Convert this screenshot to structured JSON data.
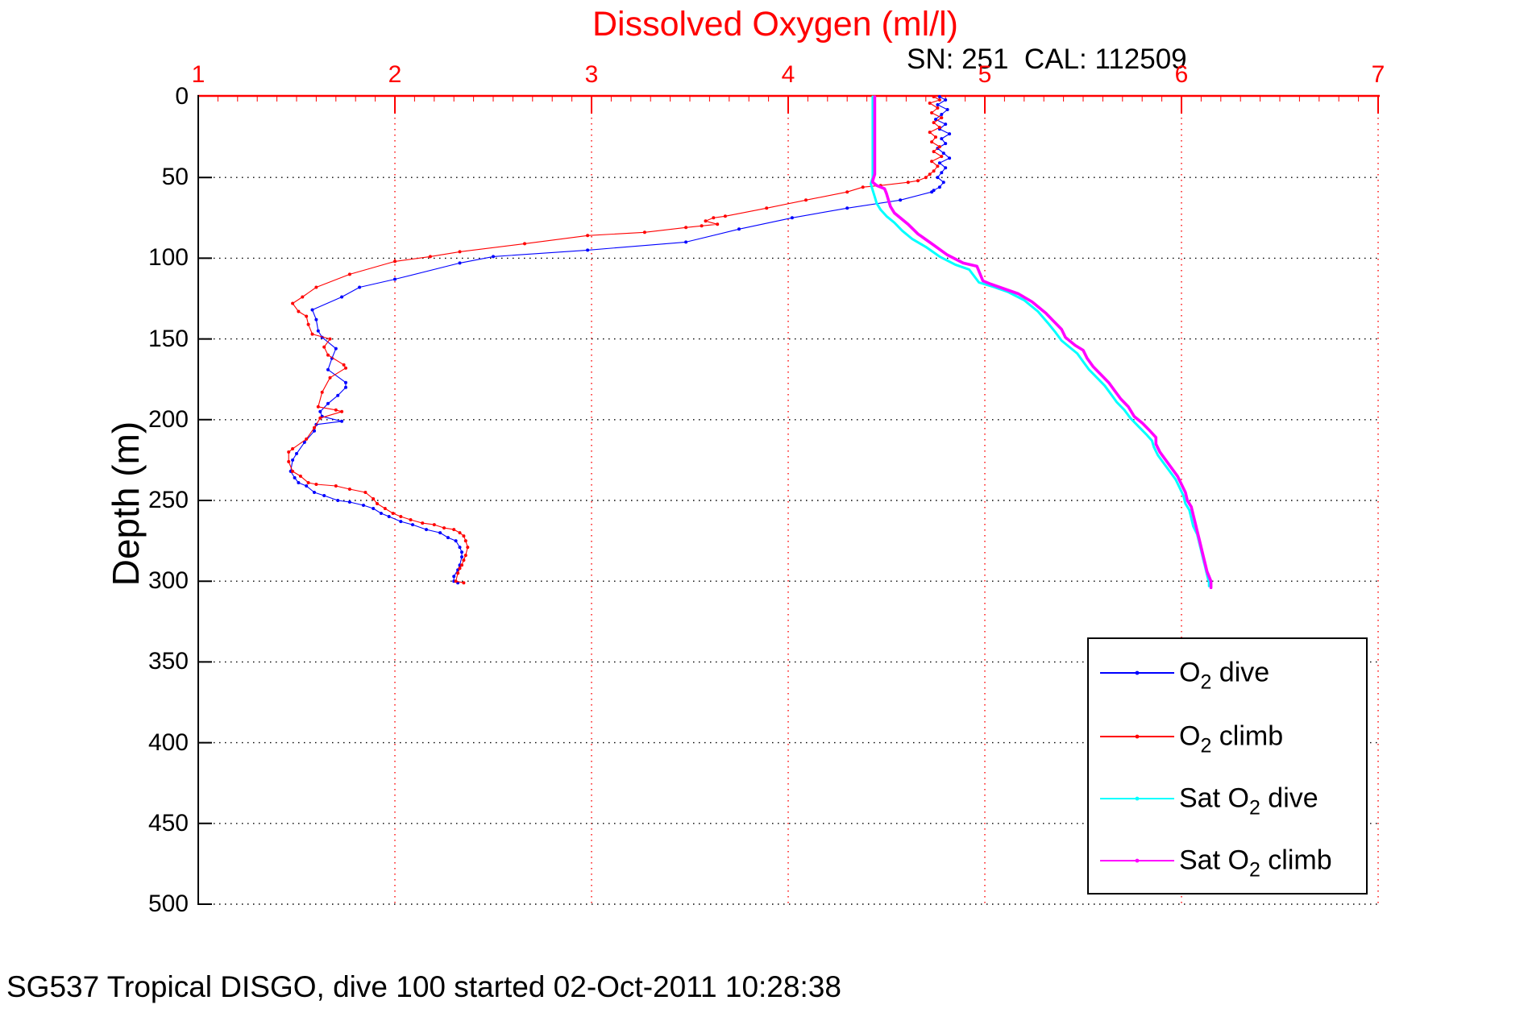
{
  "title": "Dissolved Oxygen (ml/l)",
  "subtitle": "SN: 251  CAL: 112509",
  "caption": "SG537 Tropical DISGO, dive 100 started 02-Oct-2011 10:28:38",
  "colors": {
    "x_axis": "#ff0000",
    "y_axis": "#000000",
    "x_grid": "#ff0000",
    "y_grid": "#000000",
    "background": "#ffffff"
  },
  "axes": {
    "x": {
      "ticks": [
        1,
        2,
        3,
        4,
        5,
        6,
        7
      ],
      "min": 1,
      "max": 7,
      "minor_step": 0.1,
      "position": "top",
      "color": "#ff0000"
    },
    "y": {
      "label": "Depth (m)",
      "ticks": [
        0,
        50,
        100,
        150,
        200,
        250,
        300,
        350,
        400,
        450,
        500
      ],
      "min": 0,
      "max": 500,
      "position": "left",
      "color": "#000000"
    }
  },
  "legend": {
    "entries": [
      {
        "id": "o2-dive",
        "pre": "O",
        "sub": "2",
        "post": " dive",
        "color": "#0000ff"
      },
      {
        "id": "o2-climb",
        "pre": "O",
        "sub": "2",
        "post": " climb",
        "color": "#ff0000"
      },
      {
        "id": "sat-o2-dive",
        "pre": "Sat O",
        "sub": "2",
        "post": " dive",
        "color": "#00ffff"
      },
      {
        "id": "sat-o2-climb",
        "pre": "Sat O",
        "sub": "2",
        "post": " climb",
        "color": "#ff00ff"
      }
    ]
  },
  "chart_data": {
    "type": "line",
    "title": "Dissolved Oxygen (ml/l)",
    "xlabel": "Dissolved Oxygen (ml/l)",
    "ylabel": "Depth (m)",
    "xlim": [
      1,
      7
    ],
    "ylim": [
      0,
      500
    ],
    "y_inverted": true,
    "grid": true,
    "legend_position": "lower-right",
    "series": [
      {
        "name": "O2 dive",
        "color": "#0000ff",
        "line_width": 1.1,
        "marker_radius": 2.0,
        "points": [
          [
            4.77,
            0
          ],
          [
            4.8,
            2
          ],
          [
            4.76,
            5
          ],
          [
            4.81,
            8
          ],
          [
            4.78,
            11
          ],
          [
            4.75,
            14
          ],
          [
            4.8,
            17
          ],
          [
            4.77,
            20
          ],
          [
            4.82,
            23
          ],
          [
            4.78,
            26
          ],
          [
            4.8,
            29
          ],
          [
            4.76,
            32
          ],
          [
            4.79,
            35
          ],
          [
            4.82,
            38
          ],
          [
            4.77,
            41
          ],
          [
            4.8,
            44
          ],
          [
            4.78,
            47
          ],
          [
            4.76,
            50
          ],
          [
            4.79,
            53
          ],
          [
            4.77,
            56
          ],
          [
            4.74,
            58
          ],
          [
            4.73,
            59
          ],
          [
            4.57,
            64
          ],
          [
            4.3,
            69
          ],
          [
            4.02,
            75
          ],
          [
            3.75,
            82
          ],
          [
            3.48,
            90
          ],
          [
            2.98,
            95
          ],
          [
            2.5,
            99
          ],
          [
            2.33,
            103
          ],
          [
            2.0,
            113
          ],
          [
            1.82,
            118
          ],
          [
            1.73,
            124
          ],
          [
            1.58,
            132
          ],
          [
            1.6,
            138
          ],
          [
            1.61,
            145
          ],
          [
            1.63,
            149
          ],
          [
            1.7,
            156
          ],
          [
            1.68,
            162
          ],
          [
            1.66,
            169
          ],
          [
            1.75,
            177
          ],
          [
            1.75,
            180
          ],
          [
            1.71,
            185
          ],
          [
            1.66,
            190
          ],
          [
            1.62,
            195
          ],
          [
            1.63,
            198
          ],
          [
            1.73,
            201
          ],
          [
            1.6,
            203
          ],
          [
            1.59,
            207
          ],
          [
            1.54,
            214
          ],
          [
            1.5,
            221
          ],
          [
            1.48,
            225
          ],
          [
            1.47,
            232
          ],
          [
            1.49,
            236
          ],
          [
            1.51,
            239
          ],
          [
            1.55,
            241
          ],
          [
            1.59,
            245
          ],
          [
            1.64,
            247
          ],
          [
            1.71,
            250
          ],
          [
            1.77,
            251
          ],
          [
            1.84,
            253
          ],
          [
            1.89,
            255
          ],
          [
            1.93,
            258
          ],
          [
            1.97,
            260
          ],
          [
            2.03,
            263
          ],
          [
            2.09,
            265
          ],
          [
            2.16,
            268
          ],
          [
            2.23,
            270
          ],
          [
            2.27,
            273
          ],
          [
            2.31,
            275
          ],
          [
            2.33,
            279
          ],
          [
            2.34,
            282
          ],
          [
            2.34,
            285
          ],
          [
            2.33,
            290
          ],
          [
            2.32,
            293
          ],
          [
            2.3,
            297
          ],
          [
            2.3,
            300
          ],
          [
            2.32,
            301
          ]
        ]
      },
      {
        "name": "O2 climb",
        "color": "#ff0000",
        "line_width": 1.1,
        "marker_radius": 2.0,
        "points": [
          [
            4.74,
            0
          ],
          [
            4.77,
            2
          ],
          [
            4.72,
            4
          ],
          [
            4.76,
            7
          ],
          [
            4.73,
            10
          ],
          [
            4.78,
            13
          ],
          [
            4.74,
            16
          ],
          [
            4.77,
            19
          ],
          [
            4.72,
            22
          ],
          [
            4.75,
            25
          ],
          [
            4.73,
            28
          ],
          [
            4.77,
            31
          ],
          [
            4.74,
            34
          ],
          [
            4.78,
            37
          ],
          [
            4.73,
            40
          ],
          [
            4.76,
            43
          ],
          [
            4.74,
            46
          ],
          [
            4.72,
            48
          ],
          [
            4.7,
            50
          ],
          [
            4.66,
            52
          ],
          [
            4.61,
            53
          ],
          [
            4.47,
            55
          ],
          [
            4.38,
            56
          ],
          [
            4.3,
            59
          ],
          [
            4.09,
            64
          ],
          [
            3.89,
            69
          ],
          [
            3.68,
            74
          ],
          [
            3.62,
            75
          ],
          [
            3.58,
            77
          ],
          [
            3.64,
            79
          ],
          [
            3.56,
            80
          ],
          [
            3.48,
            81
          ],
          [
            3.27,
            84
          ],
          [
            2.98,
            86
          ],
          [
            2.66,
            91
          ],
          [
            2.33,
            96
          ],
          [
            2.18,
            99
          ],
          [
            2.0,
            102
          ],
          [
            1.77,
            110
          ],
          [
            1.6,
            118
          ],
          [
            1.53,
            124
          ],
          [
            1.48,
            128
          ],
          [
            1.51,
            133
          ],
          [
            1.55,
            136
          ],
          [
            1.56,
            141
          ],
          [
            1.58,
            147
          ],
          [
            1.67,
            150
          ],
          [
            1.64,
            155
          ],
          [
            1.66,
            160
          ],
          [
            1.74,
            166
          ],
          [
            1.75,
            168
          ],
          [
            1.67,
            174
          ],
          [
            1.63,
            183
          ],
          [
            1.61,
            192
          ],
          [
            1.7,
            194
          ],
          [
            1.73,
            195
          ],
          [
            1.62,
            199
          ],
          [
            1.59,
            205
          ],
          [
            1.55,
            212
          ],
          [
            1.48,
            218
          ],
          [
            1.46,
            220
          ],
          [
            1.46,
            226
          ],
          [
            1.48,
            232
          ],
          [
            1.52,
            235
          ],
          [
            1.56,
            239
          ],
          [
            1.6,
            240
          ],
          [
            1.7,
            241
          ],
          [
            1.77,
            243
          ],
          [
            1.85,
            245
          ],
          [
            1.89,
            249
          ],
          [
            1.91,
            252
          ],
          [
            1.95,
            255
          ],
          [
            1.99,
            258
          ],
          [
            2.03,
            260
          ],
          [
            2.08,
            262
          ],
          [
            2.14,
            264
          ],
          [
            2.2,
            265
          ],
          [
            2.25,
            267
          ],
          [
            2.3,
            268
          ],
          [
            2.33,
            270
          ],
          [
            2.35,
            272
          ],
          [
            2.36,
            275
          ],
          [
            2.37,
            279
          ],
          [
            2.36,
            284
          ],
          [
            2.35,
            287
          ],
          [
            2.34,
            290
          ],
          [
            2.33,
            292
          ],
          [
            2.32,
            295
          ],
          [
            2.31,
            300
          ],
          [
            2.35,
            301
          ]
        ]
      },
      {
        "name": "Sat O2 dive",
        "color": "#00ffff",
        "line_width": 3.0,
        "marker_radius": 0,
        "points": [
          [
            4.43,
            0
          ],
          [
            4.43,
            10
          ],
          [
            4.43,
            20
          ],
          [
            4.43,
            30
          ],
          [
            4.43,
            40
          ],
          [
            4.43,
            50
          ],
          [
            4.42,
            54
          ],
          [
            4.43,
            58
          ],
          [
            4.44,
            62
          ],
          [
            4.45,
            66
          ],
          [
            4.47,
            70
          ],
          [
            4.5,
            74
          ],
          [
            4.54,
            78
          ],
          [
            4.58,
            83
          ],
          [
            4.63,
            88
          ],
          [
            4.7,
            93
          ],
          [
            4.77,
            99
          ],
          [
            4.85,
            104
          ],
          [
            4.92,
            107
          ],
          [
            4.97,
            115
          ],
          [
            5.05,
            118
          ],
          [
            5.12,
            121
          ],
          [
            5.2,
            126
          ],
          [
            5.27,
            133
          ],
          [
            5.32,
            140
          ],
          [
            5.36,
            146
          ],
          [
            5.39,
            151
          ],
          [
            5.43,
            155
          ],
          [
            5.47,
            159
          ],
          [
            5.5,
            164
          ],
          [
            5.53,
            169
          ],
          [
            5.57,
            174
          ],
          [
            5.61,
            179
          ],
          [
            5.64,
            184
          ],
          [
            5.67,
            189
          ],
          [
            5.71,
            194
          ],
          [
            5.74,
            199
          ],
          [
            5.78,
            204
          ],
          [
            5.82,
            209
          ],
          [
            5.85,
            213
          ],
          [
            5.86,
            217
          ],
          [
            5.88,
            222
          ],
          [
            5.91,
            227
          ],
          [
            5.94,
            232
          ],
          [
            5.97,
            237
          ],
          [
            5.99,
            242
          ],
          [
            6.01,
            247
          ],
          [
            6.02,
            252
          ],
          [
            6.04,
            256
          ],
          [
            6.05,
            261
          ],
          [
            6.06,
            266
          ],
          [
            6.08,
            271
          ],
          [
            6.09,
            276
          ],
          [
            6.1,
            281
          ],
          [
            6.11,
            286
          ],
          [
            6.12,
            291
          ],
          [
            6.13,
            296
          ],
          [
            6.14,
            301
          ],
          [
            6.14,
            303
          ]
        ]
      },
      {
        "name": "Sat O2 climb",
        "color": "#ff00ff",
        "line_width": 3.6,
        "marker_radius": 0,
        "points": [
          [
            4.44,
            0
          ],
          [
            4.44,
            8
          ],
          [
            4.44,
            16
          ],
          [
            4.44,
            24
          ],
          [
            4.44,
            32
          ],
          [
            4.44,
            40
          ],
          [
            4.44,
            48
          ],
          [
            4.43,
            52
          ],
          [
            4.43,
            53
          ],
          [
            4.45,
            55
          ],
          [
            4.49,
            57
          ],
          [
            4.5,
            60
          ],
          [
            4.51,
            64
          ],
          [
            4.52,
            68
          ],
          [
            4.54,
            72
          ],
          [
            4.57,
            75
          ],
          [
            4.61,
            79
          ],
          [
            4.66,
            85
          ],
          [
            4.73,
            91
          ],
          [
            4.81,
            98
          ],
          [
            4.89,
            103
          ],
          [
            4.96,
            105
          ],
          [
            4.99,
            114
          ],
          [
            5.03,
            116
          ],
          [
            5.1,
            119
          ],
          [
            5.17,
            122
          ],
          [
            5.24,
            127
          ],
          [
            5.31,
            134
          ],
          [
            5.35,
            139
          ],
          [
            5.39,
            144
          ],
          [
            5.41,
            149
          ],
          [
            5.46,
            154
          ],
          [
            5.5,
            157
          ],
          [
            5.52,
            162
          ],
          [
            5.55,
            167
          ],
          [
            5.59,
            172
          ],
          [
            5.63,
            177
          ],
          [
            5.66,
            182
          ],
          [
            5.69,
            187
          ],
          [
            5.73,
            192
          ],
          [
            5.76,
            198
          ],
          [
            5.8,
            202
          ],
          [
            5.84,
            207
          ],
          [
            5.87,
            211
          ],
          [
            5.87,
            215
          ],
          [
            5.89,
            220
          ],
          [
            5.92,
            225
          ],
          [
            5.95,
            230
          ],
          [
            5.98,
            235
          ],
          [
            6.0,
            240
          ],
          [
            6.02,
            245
          ],
          [
            6.03,
            250
          ],
          [
            6.05,
            254
          ],
          [
            6.06,
            259
          ],
          [
            6.07,
            264
          ],
          [
            6.08,
            269
          ],
          [
            6.09,
            274
          ],
          [
            6.1,
            279
          ],
          [
            6.11,
            284
          ],
          [
            6.12,
            289
          ],
          [
            6.13,
            294
          ],
          [
            6.15,
            300
          ],
          [
            6.15,
            304
          ]
        ]
      }
    ]
  }
}
